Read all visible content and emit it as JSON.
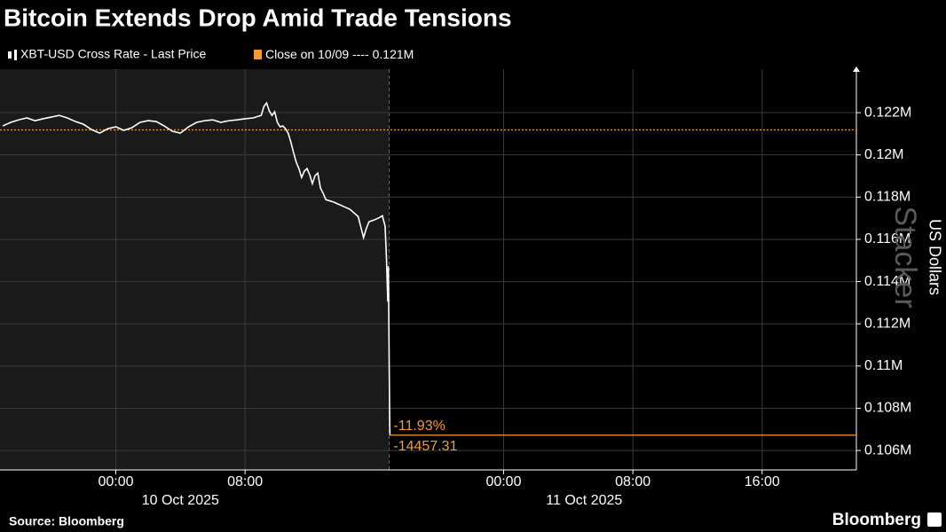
{
  "chart_data": {
    "type": "line",
    "title": "Bitcoin Extends Drop Amid Trade Tensions",
    "ylabel": "US Dollars",
    "watermark": "Stacker",
    "source": "Source: Bloomberg",
    "brand": "Bloomberg",
    "series": [
      {
        "name": "XBT-USD Cross Rate - Last Price",
        "color": "#ffffff",
        "x": [
          "2025-10-09 17:00",
          "2025-10-09 17:30",
          "2025-10-09 18:00",
          "2025-10-09 18:30",
          "2025-10-09 19:00",
          "2025-10-09 19:30",
          "2025-10-09 20:00",
          "2025-10-09 20:30",
          "2025-10-09 21:00",
          "2025-10-09 21:30",
          "2025-10-09 22:00",
          "2025-10-09 22:30",
          "2025-10-09 23:00",
          "2025-10-09 23:30",
          "2025-10-10 00:00",
          "2025-10-10 00:30",
          "2025-10-10 01:00",
          "2025-10-10 01:30",
          "2025-10-10 02:00",
          "2025-10-10 02:30",
          "2025-10-10 03:00",
          "2025-10-10 03:30",
          "2025-10-10 04:00",
          "2025-10-10 04:30",
          "2025-10-10 05:00",
          "2025-10-10 05:30",
          "2025-10-10 06:00",
          "2025-10-10 06:30",
          "2025-10-10 07:00",
          "2025-10-10 07:30",
          "2025-10-10 08:00",
          "2025-10-10 08:30",
          "2025-10-10 09:00",
          "2025-10-10 09:10",
          "2025-10-10 09:20",
          "2025-10-10 09:30",
          "2025-10-10 09:40",
          "2025-10-10 09:50",
          "2025-10-10 10:00",
          "2025-10-10 10:10",
          "2025-10-10 10:20",
          "2025-10-10 10:30",
          "2025-10-10 10:40",
          "2025-10-10 10:50",
          "2025-10-10 11:00",
          "2025-10-10 11:10",
          "2025-10-10 11:20",
          "2025-10-10 11:30",
          "2025-10-10 11:40",
          "2025-10-10 11:50",
          "2025-10-10 12:00",
          "2025-10-10 12:10",
          "2025-10-10 12:20",
          "2025-10-10 12:30",
          "2025-10-10 12:40",
          "2025-10-10 12:50",
          "2025-10-10 13:00",
          "2025-10-10 13:30",
          "2025-10-10 14:00",
          "2025-10-10 14:30",
          "2025-10-10 15:00",
          "2025-10-10 15:20",
          "2025-10-10 15:30",
          "2025-10-10 15:40",
          "2025-10-10 16:00",
          "2025-10-10 16:20",
          "2025-10-10 16:30",
          "2025-10-10 16:40",
          "2025-10-10 16:45",
          "2025-10-10 16:48",
          "2025-10-10 16:50",
          "2025-10-10 16:52",
          "2025-10-10 16:54",
          "2025-10-10 16:55",
          "2025-10-10 16:57",
          "2025-10-10 16:58"
        ],
        "values": [
          121370,
          121540,
          121660,
          121750,
          121620,
          121710,
          121790,
          121870,
          121750,
          121580,
          121450,
          121200,
          121030,
          121240,
          121330,
          121160,
          121290,
          121540,
          121620,
          121580,
          121370,
          121120,
          121030,
          121330,
          121540,
          121620,
          121660,
          121540,
          121620,
          121660,
          121710,
          121750,
          121870,
          122290,
          122460,
          122080,
          121870,
          122040,
          121540,
          121330,
          121370,
          121240,
          121030,
          120610,
          120110,
          119650,
          119350,
          118930,
          119230,
          119350,
          119060,
          118640,
          119020,
          119140,
          118430,
          118180,
          117880,
          117760,
          117590,
          117420,
          117080,
          116080,
          116500,
          116830,
          116920,
          117040,
          117120,
          116620,
          115150,
          113890,
          113050,
          114730,
          112210,
          110320,
          107590,
          106728
        ]
      }
    ],
    "close": {
      "name": "Close on 10/09 ----",
      "value": 121185,
      "value_label": "0.121M",
      "color": "#f39c34"
    },
    "change_pct": {
      "value": -11.93,
      "label": "-11.93%"
    },
    "change_abs": -14457.31,
    "shade_end": "2025-10-10 16:55",
    "xlim": [
      "2025-10-09 16:50",
      "2025-10-11 21:50"
    ],
    "xticks": [
      {
        "value": "2025-10-10 00:00",
        "label": "00:00"
      },
      {
        "value": "2025-10-10 08:00",
        "label": "08:00"
      },
      {
        "value": "2025-10-11 00:00",
        "label": "00:00"
      },
      {
        "value": "2025-10-11 08:00",
        "label": "08:00"
      },
      {
        "value": "2025-10-11 16:00",
        "label": "16:00"
      }
    ],
    "x_group_labels": [
      "10 Oct 2025",
      "11 Oct 2025"
    ],
    "ylim": [
      105080,
      124060
    ],
    "yticks": [
      {
        "value": 106000,
        "label": "0.106M"
      },
      {
        "value": 108000,
        "label": "0.108M"
      },
      {
        "value": 110000,
        "label": "0.11M"
      },
      {
        "value": 112000,
        "label": "0.112M"
      },
      {
        "value": 114000,
        "label": "0.114M"
      },
      {
        "value": 116000,
        "label": "0.116M"
      },
      {
        "value": 118000,
        "label": "0.118M"
      },
      {
        "value": 120000,
        "label": "0.12M"
      },
      {
        "value": 122000,
        "label": "0.122M"
      }
    ],
    "grid": true
  }
}
